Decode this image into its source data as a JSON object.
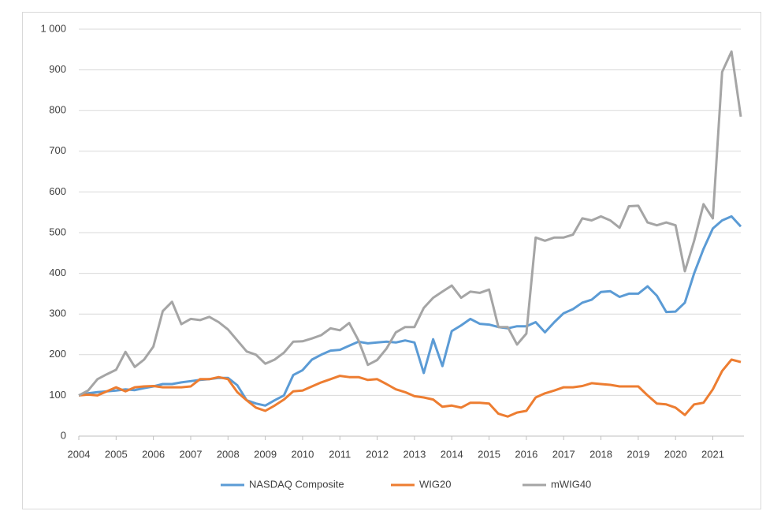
{
  "chart_data": {
    "type": "line",
    "categories": [
      "2004",
      null,
      null,
      null,
      "2005",
      null,
      null,
      null,
      "2006",
      null,
      null,
      null,
      "2007",
      null,
      null,
      null,
      "2008",
      null,
      null,
      null,
      "2009",
      null,
      null,
      null,
      "2010",
      null,
      null,
      null,
      "2011",
      null,
      null,
      null,
      "2012",
      null,
      null,
      null,
      "2013",
      null,
      null,
      null,
      "2014",
      null,
      null,
      null,
      "2015",
      null,
      null,
      null,
      "2016",
      null,
      null,
      null,
      "2017",
      null,
      null,
      null,
      "2018",
      null,
      null,
      null,
      "2019",
      null,
      null,
      null,
      "2020",
      null,
      null,
      null,
      "2021",
      null,
      null,
      null
    ],
    "series": [
      {
        "name": "NASDAQ Composite",
        "color": "#5b9bd5",
        "values": [
          100,
          105,
          108,
          110,
          112,
          115,
          113,
          118,
          122,
          128,
          128,
          132,
          135,
          138,
          140,
          143,
          143,
          125,
          88,
          80,
          75,
          88,
          100,
          150,
          162,
          188,
          200,
          210,
          212,
          222,
          232,
          228,
          230,
          232,
          230,
          235,
          230,
          155,
          238,
          172,
          258,
          272,
          288,
          276,
          274,
          268,
          265,
          270,
          270,
          280,
          255,
          280,
          302,
          312,
          328,
          335,
          354,
          356,
          342,
          350,
          350,
          368,
          345,
          305,
          306,
          328,
          400,
          460,
          510,
          530,
          540,
          515
        ]
      },
      {
        "name": "WIG20",
        "color": "#ed7d31",
        "values": [
          100,
          102,
          100,
          110,
          120,
          110,
          120,
          122,
          123,
          120,
          120,
          120,
          122,
          140,
          140,
          145,
          140,
          108,
          88,
          70,
          62,
          75,
          90,
          110,
          112,
          122,
          132,
          140,
          148,
          145,
          145,
          138,
          140,
          128,
          115,
          108,
          98,
          95,
          90,
          72,
          75,
          70,
          82,
          82,
          80,
          55,
          48,
          58,
          62,
          95,
          105,
          112,
          120,
          120,
          123,
          130,
          128,
          126,
          122,
          122,
          122,
          100,
          80,
          78,
          70,
          52,
          78,
          82,
          115,
          160,
          188,
          182
        ]
      },
      {
        "name": "mWIG40",
        "color": "#a5a5a5",
        "values": [
          100,
          112,
          140,
          152,
          163,
          207,
          170,
          188,
          220,
          307,
          330,
          275,
          288,
          285,
          293,
          280,
          262,
          235,
          208,
          200,
          178,
          188,
          205,
          232,
          233,
          240,
          248,
          265,
          260,
          278,
          235,
          175,
          187,
          215,
          255,
          268,
          268,
          315,
          340,
          355,
          370,
          340,
          355,
          352,
          360,
          268,
          268,
          225,
          252,
          488,
          480,
          488,
          488,
          495,
          535,
          530,
          540,
          530,
          512,
          565,
          566,
          525,
          518,
          525,
          518,
          405,
          480,
          570,
          535,
          895,
          945,
          785
        ]
      }
    ],
    "ylim": [
      0,
      1000
    ],
    "yticks": [
      0,
      100,
      200,
      300,
      400,
      500,
      600,
      700,
      800,
      900,
      {
        "value": 1000,
        "label": "1 000"
      }
    ],
    "grid": true,
    "legend": "bottom"
  }
}
